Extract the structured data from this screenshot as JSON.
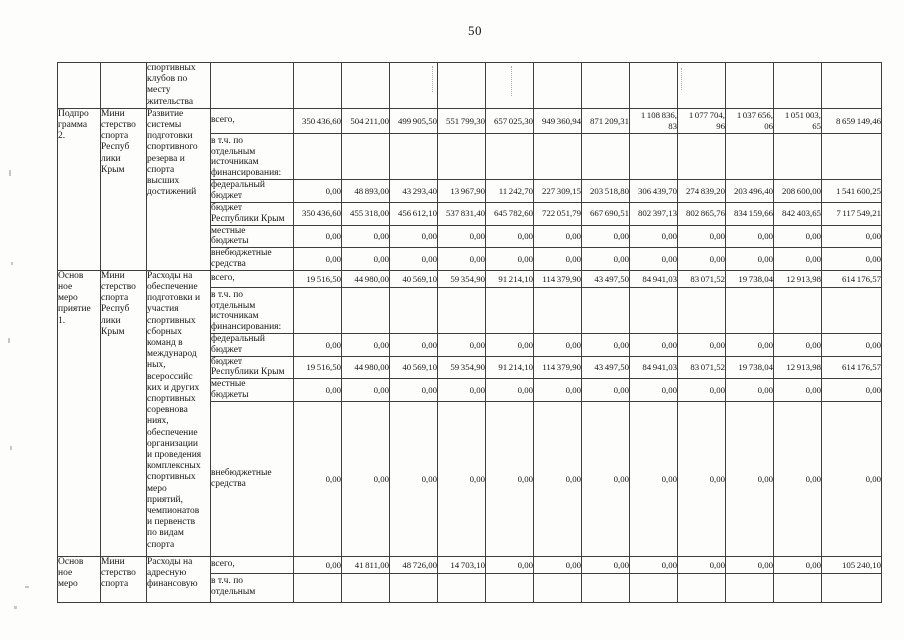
{
  "page_number": "50",
  "colors": {
    "paper": "#fdfdfc",
    "ink": "#161616",
    "border": "#3e3e3e"
  },
  "table": {
    "sections": [
      {
        "program": "",
        "ministry": "",
        "activity": "спортивных\nклубов по\nместу\nжительства",
        "rows": [
          {
            "label": "",
            "values": [
              "",
              "",
              "",
              "",
              "",
              "",
              "",
              "",
              "",
              "",
              "",
              ""
            ]
          }
        ]
      },
      {
        "program": "Подпро\nграмма\n2.",
        "ministry": "Мини\nстерство\nспорта\nРеспуб\nлики\nКрым",
        "activity": "Развитие\nсистемы\nподготовки\nспортивного\nрезерва и\nспорта\nвысших\nдостижений",
        "rows": [
          {
            "label": "всего,",
            "values": [
              "350 436,60",
              "504 211,00",
              "499 905,50",
              "551 799,30",
              "657 025,30",
              "949 360,94",
              "871 209,31",
              "1 108 836,\n83",
              "1 077 704,\n96",
              "1 037 656,\n06",
              "1 051 003,\n65",
              "8 659 149,46"
            ]
          },
          {
            "label": "в т.ч. по\nотдельным\nисточникам\nфинансирования:",
            "values": [
              "",
              "",
              "",
              "",
              "",
              "",
              "",
              "",
              "",
              "",
              "",
              ""
            ]
          },
          {
            "label": "федеральный\nбюджет",
            "values": [
              "0,00",
              "48 893,00",
              "43 293,40",
              "13 967,90",
              "11 242,70",
              "227 309,15",
              "203 518,80",
              "306 439,70",
              "274 839,20",
              "203 496,40",
              "208 600,00",
              "1 541 600,25"
            ]
          },
          {
            "label": "бюджет\nРеспублики Крым",
            "values": [
              "350 436,60",
              "455 318,00",
              "456 612,10",
              "537 831,40",
              "645 782,60",
              "722 051,79",
              "667 690,51",
              "802 397,13",
              "802 865,76",
              "834 159,66",
              "842 403,65",
              "7 117 549,21"
            ]
          },
          {
            "label": "местные\nбюджеты",
            "values": [
              "0,00",
              "0,00",
              "0,00",
              "0,00",
              "0,00",
              "0,00",
              "0,00",
              "0,00",
              "0,00",
              "0,00",
              "0,00",
              "0,00"
            ]
          },
          {
            "label": "внебюджетные\nсредства",
            "values": [
              "0,00",
              "0,00",
              "0,00",
              "0,00",
              "0,00",
              "0,00",
              "0,00",
              "0,00",
              "0,00",
              "0,00",
              "0,00",
              "0,00"
            ]
          }
        ]
      },
      {
        "program": "Основ\nное\nмеро\nприятие\n1.",
        "ministry": "Мини\nстерство\nспорта\nРеспуб\nлики\nКрым",
        "activity": "Расходы на\nобеспечение\nподготовки и\nучастия\nспортивных\nсборных\nкоманд в\nмеждународ\nных,\nвсероссийс\nких и других\nспортивных\nсоревнова\nниях,\nобеспечение\nорганизации\nи проведения\nкомплексных\nспортивных\nмеро\nприятий,\nчемпионатов\nи первенств\nпо видам\nспорта",
        "rows": [
          {
            "label": "всего,",
            "values": [
              "19 516,50",
              "44 980,00",
              "40 569,10",
              "59 354,90",
              "91 214,10",
              "114 379,90",
              "43 497,50",
              "84 941,03",
              "83 071,52",
              "19 738,04",
              "12 913,98",
              "614 176,57"
            ]
          },
          {
            "label": "в т.ч. по\nотдельным\nисточникам\nфинансирования:",
            "values": [
              "",
              "",
              "",
              "",
              "",
              "",
              "",
              "",
              "",
              "",
              "",
              ""
            ]
          },
          {
            "label": "федеральный\nбюджет",
            "values": [
              "0,00",
              "0,00",
              "0,00",
              "0,00",
              "0,00",
              "0,00",
              "0,00",
              "0,00",
              "0,00",
              "0,00",
              "0,00",
              "0,00"
            ]
          },
          {
            "label": "бюджет\nРеспублики Крым",
            "values": [
              "19 516,50",
              "44 980,00",
              "40 569,10",
              "59 354,90",
              "91 214,10",
              "114 379,90",
              "43 497,50",
              "84 941,03",
              "83 071,52",
              "19 738,04",
              "12 913,98",
              "614 176,57"
            ]
          },
          {
            "label": "местные\nбюджеты",
            "values": [
              "0,00",
              "0,00",
              "0,00",
              "0,00",
              "0,00",
              "0,00",
              "0,00",
              "0,00",
              "0,00",
              "0,00",
              "0,00",
              "0,00"
            ]
          },
          {
            "label": "внебюджетные\nсредства",
            "values": [
              "0,00",
              "0,00",
              "0,00",
              "0,00",
              "0,00",
              "0,00",
              "0,00",
              "0,00",
              "0,00",
              "0,00",
              "0,00",
              "0,00"
            ]
          }
        ]
      },
      {
        "program": "Основ\nное\nмеро",
        "ministry": "Мини\nстерство\nспорта",
        "activity": "Расходы на\nадресную\nфинансовую",
        "rows": [
          {
            "label": "всего,",
            "values": [
              "0,00",
              "41 811,00",
              "48 726,00",
              "14 703,10",
              "0,00",
              "0,00",
              "0,00",
              "0,00",
              "0,00",
              "0,00",
              "0,00",
              "105 240,10"
            ]
          },
          {
            "label": "в т.ч. по\nотдельным",
            "values": [
              "",
              "",
              "",
              "",
              "",
              "",
              "",
              "",
              "",
              "",
              "",
              ""
            ]
          }
        ]
      }
    ]
  }
}
